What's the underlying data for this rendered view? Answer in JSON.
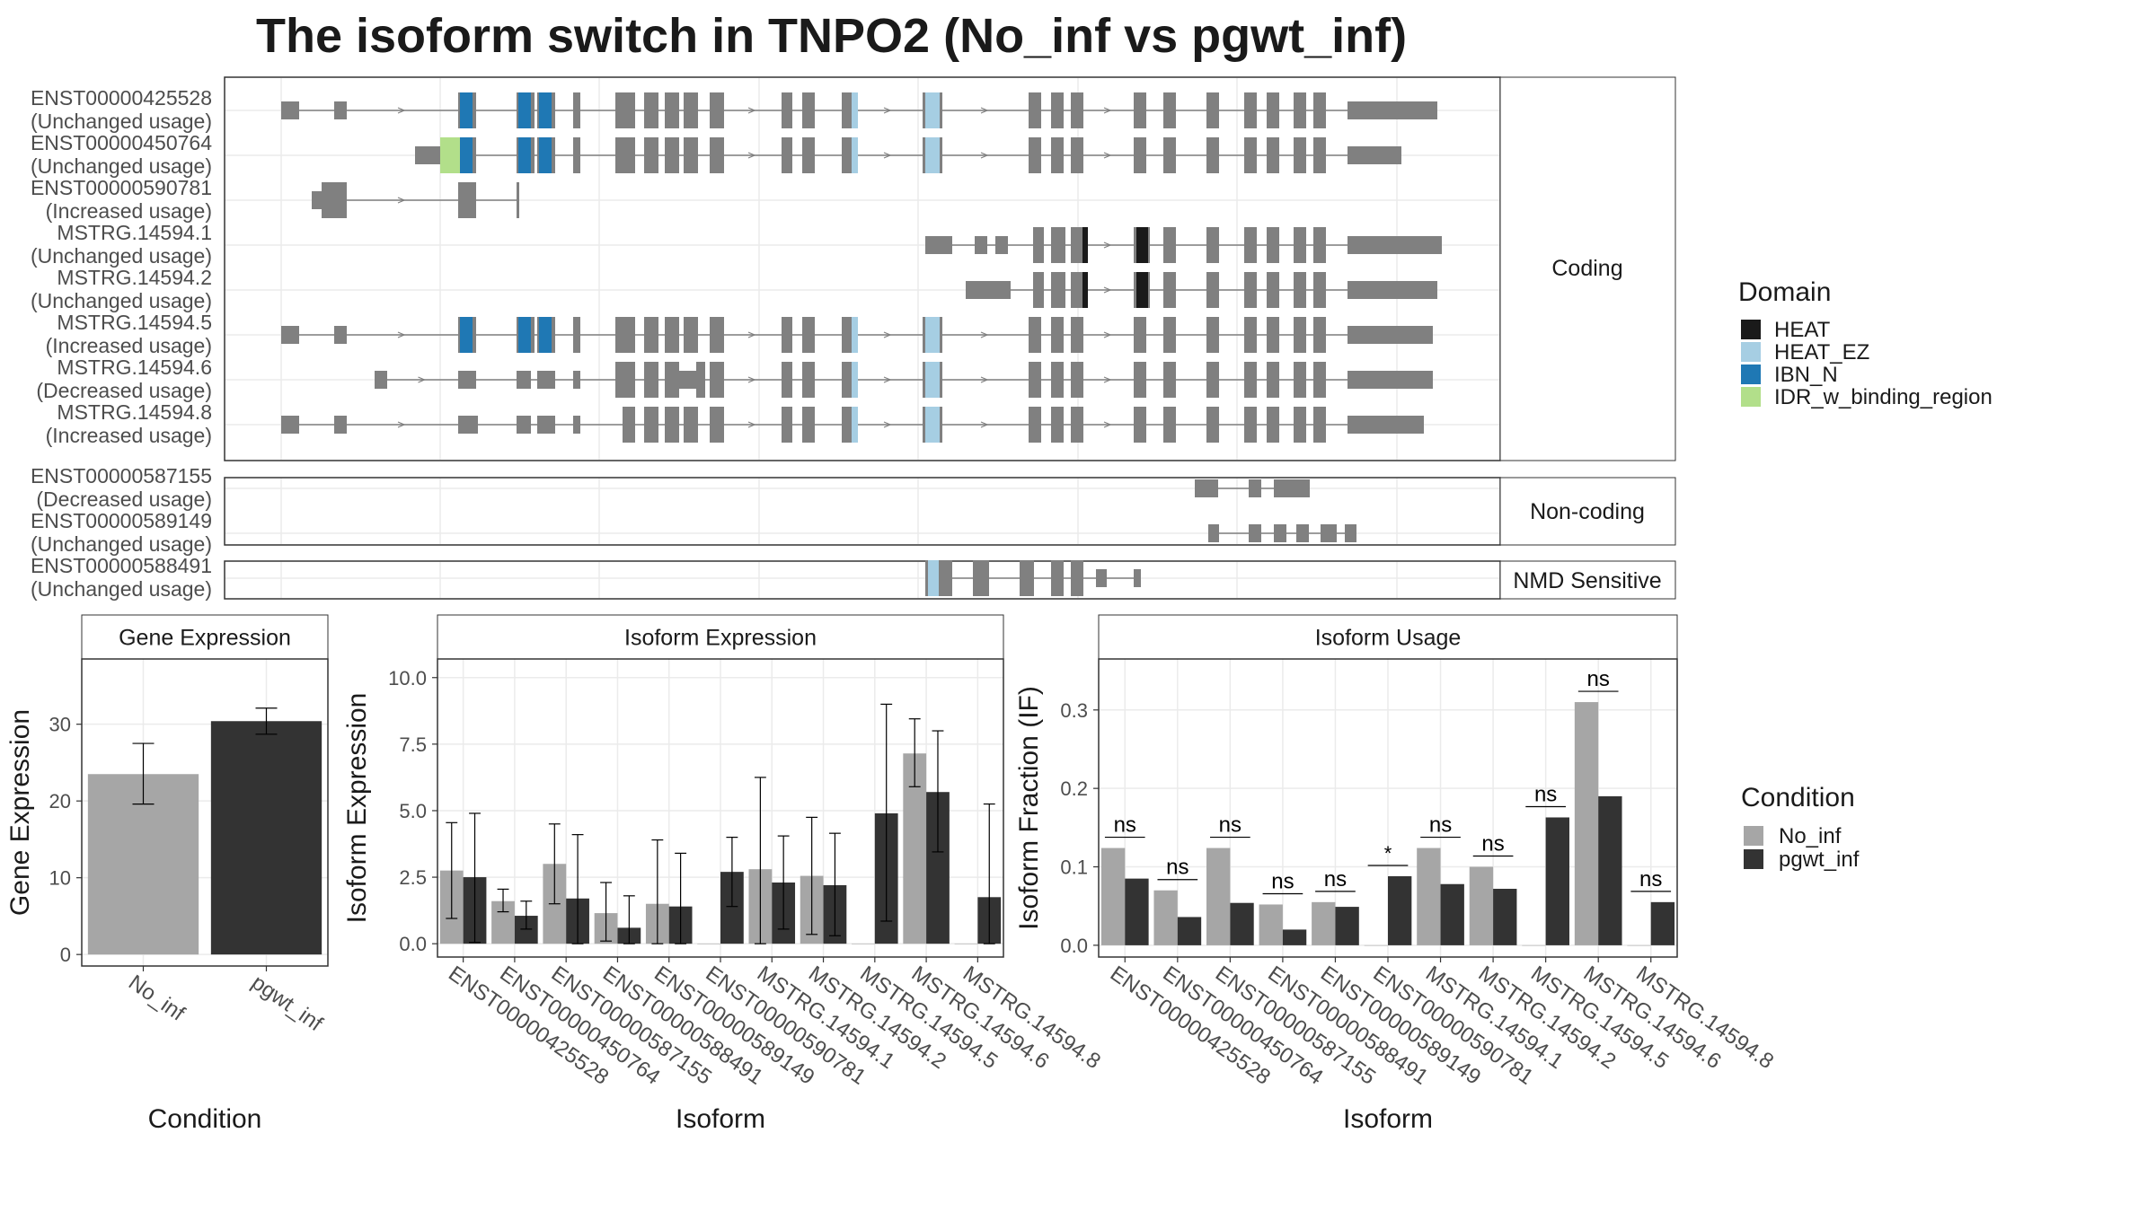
{
  "title": "The isoform switch in TNPO2 (No_inf vs pgwt_inf)",
  "colors": {
    "intron": "#7f7f7f",
    "exon": "#808080",
    "no_inf": "#a6a6a6",
    "pgwt_inf": "#333333",
    "grid": "#ebebeb",
    "HEAT": "#1a1a1a",
    "HEAT_EZ": "#a6cee3",
    "IBN_N": "#1f78b4",
    "IDR_w_binding_region": "#b2df8a"
  },
  "panels": {
    "coding": "Coding",
    "noncoding": "Non-coding",
    "nmd": "NMD Sensitive",
    "gene_expression": "Gene Expression",
    "isoform_expression": "Isoform Expression",
    "isoform_usage": "Isoform Usage"
  },
  "legend_domain": {
    "title": "Domain",
    "items": [
      {
        "label": "HEAT",
        "color": "#1a1a1a"
      },
      {
        "label": "HEAT_EZ",
        "color": "#a6cee3"
      },
      {
        "label": "IBN_N",
        "color": "#1f78b4"
      },
      {
        "label": "IDR_w_binding_region",
        "color": "#b2df8a"
      }
    ]
  },
  "legend_condition": {
    "title": "Condition",
    "items": [
      {
        "label": "No_inf",
        "color": "#a6a6a6"
      },
      {
        "label": "pgwt_inf",
        "color": "#333333"
      }
    ]
  },
  "transcripts": [
    {
      "group": "coding",
      "name": "ENST00000425528",
      "usage": "(Unchanged usage)"
    },
    {
      "group": "coding",
      "name": "ENST00000450764",
      "usage": "(Unchanged usage)"
    },
    {
      "group": "coding",
      "name": "ENST00000590781",
      "usage": "(Increased usage)"
    },
    {
      "group": "coding",
      "name": "MSTRG.14594.1",
      "usage": "(Unchanged usage)"
    },
    {
      "group": "coding",
      "name": "MSTRG.14594.2",
      "usage": "(Unchanged usage)"
    },
    {
      "group": "coding",
      "name": "MSTRG.14594.5",
      "usage": "(Increased usage)"
    },
    {
      "group": "coding",
      "name": "MSTRG.14594.6",
      "usage": "(Decreased usage)"
    },
    {
      "group": "coding",
      "name": "MSTRG.14594.8",
      "usage": "(Increased usage)"
    },
    {
      "group": "noncoding",
      "name": "ENST00000587155",
      "usage": "(Decreased usage)"
    },
    {
      "group": "noncoding",
      "name": "ENST00000589149",
      "usage": "(Unchanged usage)"
    },
    {
      "group": "nmd",
      "name": "ENST00000588491",
      "usage": "(Unchanged usage)"
    }
  ],
  "chart_data": [
    {
      "type": "bar",
      "title": "Gene Expression",
      "xlabel": "Condition",
      "ylabel": "Gene Expression",
      "categories": [
        "No_inf",
        "pgwt_inf"
      ],
      "values": [
        23.5,
        30.4
      ],
      "error_low": [
        19.6,
        28.7
      ],
      "error_high": [
        27.5,
        32.1
      ],
      "ylim": [
        -1.5,
        38.5
      ],
      "yticks": [
        "0",
        "10",
        "20",
        "30"
      ]
    },
    {
      "type": "bar",
      "title": "Isoform Expression",
      "xlabel": "Isoform",
      "ylabel": "Isoform Expression",
      "categories": [
        "ENST00000425528",
        "ENST00000450764",
        "ENST00000587155",
        "ENST00000588491",
        "ENST00000589149",
        "ENST00000590781",
        "MSTRG.14594.1",
        "MSTRG.14594.2",
        "MSTRG.14594.5",
        "MSTRG.14594.6",
        "MSTRG.14594.8"
      ],
      "series": [
        {
          "name": "No_inf",
          "values": [
            2.75,
            1.6,
            3.0,
            1.15,
            1.5,
            0.0,
            2.8,
            2.55,
            0.0,
            7.15,
            0.0
          ],
          "error_low": [
            0.95,
            1.2,
            1.5,
            0.1,
            0.0,
            0.0,
            0.0,
            0.35,
            0.0,
            5.9,
            0.0
          ],
          "error_high": [
            4.55,
            2.05,
            4.5,
            2.3,
            3.9,
            0.0,
            6.25,
            4.75,
            0.0,
            8.45,
            0.0
          ]
        },
        {
          "name": "pgwt_inf",
          "values": [
            2.5,
            1.05,
            1.7,
            0.6,
            1.4,
            2.7,
            2.3,
            2.2,
            4.9,
            5.7,
            1.75
          ],
          "error_low": [
            0.05,
            0.55,
            0.0,
            0.0,
            0.0,
            1.4,
            0.55,
            0.3,
            0.85,
            3.45,
            0.0
          ],
          "error_high": [
            4.9,
            1.6,
            4.1,
            1.8,
            3.4,
            4.0,
            4.05,
            4.15,
            9.0,
            8.0,
            5.25
          ]
        }
      ],
      "ylim": [
        -0.5,
        10.7
      ],
      "yticks": [
        "0.0",
        "2.5",
        "5.0",
        "7.5",
        "10.0"
      ]
    },
    {
      "type": "bar",
      "title": "Isoform Usage",
      "xlabel": "Isoform",
      "ylabel": "Isoform Fraction (IF)",
      "categories": [
        "ENST00000425528",
        "ENST00000450764",
        "ENST00000587155",
        "ENST00000588491",
        "ENST00000589149",
        "ENST00000590781",
        "MSTRG.14594.1",
        "MSTRG.14594.2",
        "MSTRG.14594.5",
        "MSTRG.14594.6",
        "MSTRG.14594.8"
      ],
      "series": [
        {
          "name": "No_inf",
          "values": [
            0.124,
            0.07,
            0.124,
            0.052,
            0.055,
            0.0,
            0.124,
            0.1,
            0.0,
            0.31,
            0.0
          ]
        },
        {
          "name": "pgwt_inf",
          "values": [
            0.085,
            0.036,
            0.054,
            0.02,
            0.049,
            0.088,
            0.078,
            0.072,
            0.163,
            0.19,
            0.055
          ]
        }
      ],
      "significance": [
        "ns",
        "ns",
        "ns",
        "ns",
        "ns",
        "*",
        "ns",
        "ns",
        "ns",
        "ns",
        "ns"
      ],
      "ylim": [
        -0.015,
        0.365
      ],
      "yticks": [
        "0.0",
        "0.1",
        "0.2",
        "0.3"
      ]
    }
  ]
}
